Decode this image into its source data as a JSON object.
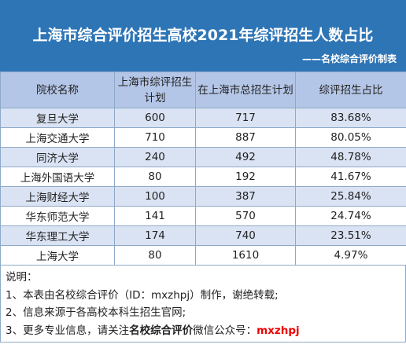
{
  "header": {
    "title": "上海市综合评价招生高校2021年综评招生人数占比",
    "subtitle": "——名校综合评价制表"
  },
  "table": {
    "columns": [
      "院校名称",
      "上海市综评招生计划",
      "在上海市总招生计划",
      "综评招生占比"
    ],
    "rows": [
      [
        "复旦大学",
        "600",
        "717",
        "83.68%"
      ],
      [
        "上海交通大学",
        "710",
        "887",
        "80.05%"
      ],
      [
        "同济大学",
        "240",
        "492",
        "48.78%"
      ],
      [
        "上海外国语大学",
        "80",
        "192",
        "41.67%"
      ],
      [
        "上海财经大学",
        "100",
        "387",
        "25.84%"
      ],
      [
        "华东师范大学",
        "141",
        "570",
        "24.74%"
      ],
      [
        "华东理工大学",
        "174",
        "740",
        "23.51%"
      ],
      [
        "上海大学",
        "80",
        "1610",
        "4.97%"
      ]
    ]
  },
  "notes": {
    "heading": "说明：",
    "items": [
      [
        "1、本表由名校综合评价（ID：mxzhpj）制作，谢绝转载;"
      ],
      [
        "2、信息来源于各高校本科生招生官网;"
      ],
      [
        "3、更多专业信息，请关注",
        "名校综合评价",
        "微信公众号：",
        "mxzhpj"
      ]
    ]
  }
}
